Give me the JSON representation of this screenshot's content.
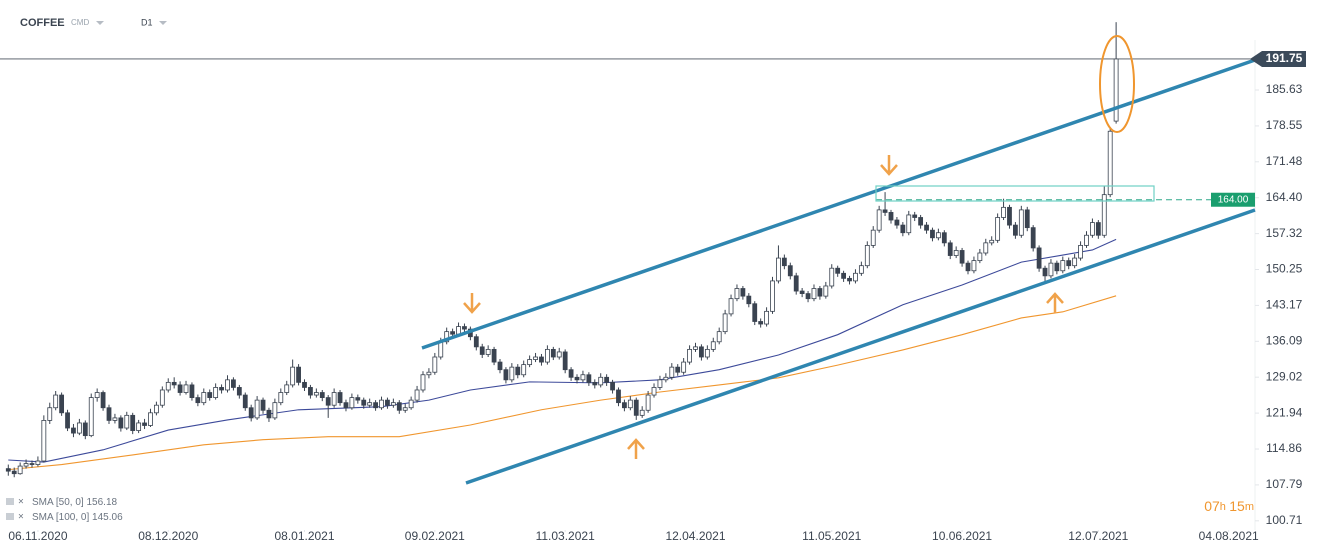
{
  "header": {
    "symbol": "COFFEE",
    "market": "CMD",
    "interval": "D1"
  },
  "chart_data": {
    "type": "candlestick",
    "xlim": [
      -1.4,
      209.6
    ],
    "ylim": [
      98.9,
      201.4
    ],
    "xticks": [
      {
        "value": 5,
        "label": "06.11.2020"
      },
      {
        "value": 27,
        "label": "08.12.2020"
      },
      {
        "value": 50,
        "label": "08.01.2021"
      },
      {
        "value": 72,
        "label": "09.02.2021"
      },
      {
        "value": 94,
        "label": "11.03.2021"
      },
      {
        "value": 116,
        "label": "12.04.2021"
      },
      {
        "value": 139,
        "label": "11.05.2021"
      },
      {
        "value": 161,
        "label": "10.06.2021"
      },
      {
        "value": 184,
        "label": "12.07.2021"
      },
      {
        "value": 206,
        "label": "04.08.2021"
      }
    ],
    "yticks": [
      100.71,
      107.79,
      114.86,
      121.94,
      129.02,
      136.09,
      143.17,
      150.25,
      157.32,
      {
        "value": 164.4,
        "label": "164.40"
      },
      171.48,
      178.55,
      185.63
    ],
    "up_color": "#ffffff",
    "down_color": "#3a4350",
    "outline_color": "#3a4350",
    "candles": [
      [
        111.0,
        111.8,
        109.6,
        110.5
      ],
      [
        110.5,
        111.2,
        109.3,
        110.0
      ],
      [
        110.0,
        112.2,
        109.8,
        111.5
      ],
      [
        111.5,
        112.8,
        111.0,
        112.0
      ],
      [
        112.0,
        112.6,
        111.2,
        111.8
      ],
      [
        111.8,
        113.4,
        111.4,
        112.5
      ],
      [
        112.5,
        121.5,
        112.2,
        120.5
      ],
      [
        120.5,
        124.0,
        119.8,
        123.0
      ],
      [
        123.0,
        126.3,
        122.5,
        125.5
      ],
      [
        125.5,
        126.0,
        121.4,
        122.0
      ],
      [
        122.0,
        122.6,
        118.4,
        119.0
      ],
      [
        119.0,
        119.8,
        117.2,
        118.0
      ],
      [
        118.0,
        120.8,
        117.6,
        120.0
      ],
      [
        120.0,
        120.5,
        116.8,
        117.5
      ],
      [
        117.5,
        125.8,
        117.2,
        125.0
      ],
      [
        125.0,
        126.8,
        124.2,
        126.0
      ],
      [
        126.0,
        126.4,
        122.4,
        123.0
      ],
      [
        123.0,
        123.6,
        119.8,
        120.5
      ],
      [
        120.5,
        121.8,
        119.9,
        121.0
      ],
      [
        121.0,
        121.5,
        118.3,
        119.0
      ],
      [
        119.0,
        122.2,
        118.6,
        121.5
      ],
      [
        121.5,
        122.0,
        117.8,
        118.5
      ],
      [
        118.5,
        120.6,
        118.0,
        120.0
      ],
      [
        120.0,
        120.8,
        118.8,
        119.5
      ],
      [
        119.5,
        122.8,
        119.2,
        122.0
      ],
      [
        122.0,
        124.2,
        121.5,
        123.5
      ],
      [
        123.5,
        127.2,
        123.0,
        126.5
      ],
      [
        126.5,
        128.8,
        126.0,
        128.0
      ],
      [
        128.0,
        129.0,
        126.8,
        127.5
      ],
      [
        127.5,
        128.2,
        125.4,
        126.0
      ],
      [
        126.0,
        128.3,
        125.6,
        127.5
      ],
      [
        127.5,
        128.0,
        124.4,
        125.0
      ],
      [
        125.0,
        125.6,
        123.3,
        124.0
      ],
      [
        124.0,
        126.8,
        123.5,
        126.0
      ],
      [
        126.0,
        126.6,
        124.4,
        125.0
      ],
      [
        125.0,
        127.8,
        124.6,
        127.0
      ],
      [
        127.0,
        127.6,
        125.8,
        126.5
      ],
      [
        126.5,
        129.4,
        126.0,
        128.5
      ],
      [
        128.5,
        129.0,
        126.4,
        127.0
      ],
      [
        127.0,
        127.5,
        124.8,
        125.5
      ],
      [
        125.5,
        126.0,
        122.4,
        123.0
      ],
      [
        123.0,
        123.6,
        120.3,
        121.0
      ],
      [
        121.0,
        125.3,
        120.6,
        124.5
      ],
      [
        124.5,
        125.0,
        121.8,
        122.5
      ],
      [
        122.5,
        123.0,
        120.2,
        121.0
      ],
      [
        121.0,
        124.8,
        120.6,
        124.0
      ],
      [
        124.0,
        126.8,
        123.5,
        126.0
      ],
      [
        126.0,
        128.3,
        125.5,
        127.5
      ],
      [
        127.5,
        132.5,
        127.0,
        131.0
      ],
      [
        131.0,
        131.6,
        127.4,
        128.0
      ],
      [
        128.0,
        128.6,
        126.3,
        127.0
      ],
      [
        127.0,
        127.5,
        124.8,
        125.5
      ],
      [
        125.5,
        126.8,
        125.0,
        126.0
      ],
      [
        126.0,
        126.5,
        124.3,
        125.0
      ],
      [
        125.0,
        125.5,
        121.0,
        123.5
      ],
      [
        123.5,
        126.8,
        123.0,
        126.0
      ],
      [
        126.0,
        126.5,
        123.4,
        124.0
      ],
      [
        124.0,
        124.6,
        122.3,
        123.0
      ],
      [
        123.0,
        125.8,
        122.6,
        125.0
      ],
      [
        125.0,
        125.6,
        123.8,
        124.5
      ],
      [
        124.5,
        125.0,
        122.8,
        123.5
      ],
      [
        123.5,
        124.8,
        123.0,
        124.0
      ],
      [
        124.0,
        124.5,
        122.4,
        123.0
      ],
      [
        123.0,
        125.2,
        122.6,
        124.5
      ],
      [
        124.5,
        125.0,
        122.8,
        123.5
      ],
      [
        123.5,
        124.8,
        123.0,
        124.0
      ],
      [
        124.0,
        124.5,
        121.8,
        122.5
      ],
      [
        122.5,
        123.8,
        122.0,
        123.0
      ],
      [
        123.0,
        125.2,
        122.6,
        124.5
      ],
      [
        124.5,
        127.3,
        124.0,
        126.5
      ],
      [
        126.5,
        130.2,
        126.0,
        129.5
      ],
      [
        129.5,
        130.8,
        128.8,
        130.0
      ],
      [
        130.0,
        133.8,
        129.5,
        133.0
      ],
      [
        133.0,
        136.8,
        132.5,
        136.0
      ],
      [
        136.0,
        138.8,
        135.5,
        138.0
      ],
      [
        138.0,
        138.6,
        136.8,
        137.5
      ],
      [
        137.5,
        139.8,
        137.0,
        139.0
      ],
      [
        139.0,
        139.6,
        137.8,
        138.5
      ],
      [
        138.5,
        139.0,
        136.3,
        137.0
      ],
      [
        137.0,
        137.5,
        134.3,
        135.0
      ],
      [
        135.0,
        135.6,
        132.8,
        133.5
      ],
      [
        133.5,
        135.3,
        133.0,
        134.5
      ],
      [
        134.5,
        135.0,
        131.4,
        132.0
      ],
      [
        132.0,
        132.6,
        129.8,
        130.5
      ],
      [
        130.5,
        131.0,
        127.8,
        128.5
      ],
      [
        128.5,
        131.8,
        128.0,
        131.0
      ],
      [
        131.0,
        131.6,
        128.8,
        129.5
      ],
      [
        129.5,
        132.3,
        129.0,
        131.5
      ],
      [
        131.5,
        133.3,
        131.0,
        132.5
      ],
      [
        132.5,
        133.8,
        132.0,
        133.0
      ],
      [
        133.0,
        133.6,
        131.3,
        132.0
      ],
      [
        132.0,
        135.3,
        131.5,
        134.5
      ],
      [
        134.5,
        135.0,
        132.4,
        133.0
      ],
      [
        133.0,
        134.8,
        132.5,
        134.0
      ],
      [
        134.0,
        134.5,
        129.8,
        130.5
      ],
      [
        130.5,
        131.0,
        128.3,
        129.0
      ],
      [
        129.0,
        129.6,
        127.8,
        128.5
      ],
      [
        128.5,
        130.3,
        128.0,
        129.5
      ],
      [
        129.5,
        130.0,
        127.3,
        128.0
      ],
      [
        128.0,
        128.6,
        126.8,
        127.5
      ],
      [
        127.5,
        129.8,
        127.0,
        129.0
      ],
      [
        129.0,
        129.6,
        127.3,
        128.0
      ],
      [
        128.0,
        128.5,
        125.8,
        126.5
      ],
      [
        126.5,
        127.0,
        123.3,
        124.0
      ],
      [
        124.0,
        124.6,
        122.3,
        123.0
      ],
      [
        123.0,
        125.3,
        122.5,
        124.5
      ],
      [
        124.5,
        125.0,
        120.6,
        121.5
      ],
      [
        121.5,
        123.3,
        121.0,
        122.5
      ],
      [
        122.5,
        126.3,
        122.0,
        125.5
      ],
      [
        125.5,
        127.8,
        125.0,
        127.0
      ],
      [
        127.0,
        129.3,
        126.5,
        128.5
      ],
      [
        128.5,
        129.8,
        128.0,
        129.0
      ],
      [
        129.0,
        131.8,
        128.5,
        131.0
      ],
      [
        131.0,
        131.6,
        129.3,
        130.0
      ],
      [
        130.0,
        132.8,
        129.5,
        132.0
      ],
      [
        132.0,
        135.3,
        131.5,
        134.5
      ],
      [
        134.5,
        135.8,
        134.0,
        135.0
      ],
      [
        135.0,
        135.5,
        132.3,
        133.0
      ],
      [
        133.0,
        135.3,
        132.5,
        134.5
      ],
      [
        134.5,
        136.8,
        134.0,
        136.0
      ],
      [
        136.0,
        138.8,
        135.5,
        138.0
      ],
      [
        138.0,
        142.3,
        137.5,
        141.5
      ],
      [
        141.5,
        145.3,
        141.0,
        144.5
      ],
      [
        144.5,
        147.3,
        144.0,
        146.5
      ],
      [
        146.5,
        147.0,
        144.3,
        145.0
      ],
      [
        145.0,
        145.6,
        142.8,
        143.5
      ],
      [
        143.5,
        144.0,
        139.3,
        140.0
      ],
      [
        140.0,
        140.6,
        138.8,
        139.5
      ],
      [
        139.5,
        142.8,
        139.0,
        142.0
      ],
      [
        142.0,
        148.8,
        141.5,
        148.0
      ],
      [
        148.0,
        155.0,
        147.5,
        152.5
      ],
      [
        152.5,
        153.2,
        150.3,
        151.0
      ],
      [
        151.0,
        151.6,
        148.3,
        149.0
      ],
      [
        149.0,
        149.6,
        145.3,
        146.0
      ],
      [
        146.0,
        146.6,
        144.8,
        145.5
      ],
      [
        145.5,
        146.0,
        143.8,
        144.5
      ],
      [
        144.5,
        147.3,
        144.0,
        146.5
      ],
      [
        146.5,
        147.0,
        144.3,
        145.0
      ],
      [
        145.0,
        147.8,
        144.5,
        147.0
      ],
      [
        147.0,
        151.3,
        146.5,
        150.5
      ],
      [
        150.5,
        151.0,
        148.8,
        149.5
      ],
      [
        149.5,
        150.0,
        147.8,
        148.5
      ],
      [
        148.5,
        149.0,
        147.3,
        148.0
      ],
      [
        148.0,
        150.3,
        147.5,
        149.5
      ],
      [
        149.5,
        151.8,
        149.0,
        151.0
      ],
      [
        151.0,
        155.8,
        150.5,
        155.0
      ],
      [
        155.0,
        158.8,
        154.5,
        158.0
      ],
      [
        158.0,
        162.8,
        157.5,
        162.0
      ],
      [
        162.0,
        165.5,
        160.8,
        161.5
      ],
      [
        161.5,
        162.0,
        159.3,
        160.0
      ],
      [
        160.0,
        160.6,
        158.3,
        159.0
      ],
      [
        159.0,
        159.6,
        156.8,
        157.5
      ],
      [
        157.5,
        161.8,
        157.0,
        161.0
      ],
      [
        161.0,
        161.6,
        159.8,
        160.5
      ],
      [
        160.5,
        161.0,
        158.3,
        159.0
      ],
      [
        159.0,
        159.6,
        157.3,
        158.0
      ],
      [
        158.0,
        158.5,
        155.8,
        156.5
      ],
      [
        156.5,
        158.3,
        156.0,
        157.5
      ],
      [
        157.5,
        158.0,
        154.8,
        155.5
      ],
      [
        155.5,
        156.0,
        152.3,
        153.0
      ],
      [
        153.0,
        154.8,
        152.5,
        154.0
      ],
      [
        154.0,
        154.5,
        150.8,
        151.5
      ],
      [
        151.5,
        152.0,
        149.3,
        150.0
      ],
      [
        150.0,
        152.8,
        149.5,
        152.0
      ],
      [
        152.0,
        154.3,
        151.5,
        153.5
      ],
      [
        153.5,
        156.3,
        153.0,
        155.5
      ],
      [
        155.5,
        156.8,
        155.0,
        156.0
      ],
      [
        156.0,
        161.3,
        155.5,
        160.5
      ],
      [
        160.5,
        164.2,
        160.0,
        162.5
      ],
      [
        162.5,
        163.0,
        158.3,
        159.0
      ],
      [
        159.0,
        159.6,
        156.3,
        157.0
      ],
      [
        157.0,
        162.8,
        156.5,
        162.0
      ],
      [
        162.0,
        162.6,
        157.8,
        158.5
      ],
      [
        158.5,
        159.0,
        153.8,
        154.5
      ],
      [
        154.5,
        155.0,
        149.8,
        150.5
      ],
      [
        150.5,
        151.0,
        147.5,
        149.0
      ],
      [
        149.0,
        152.3,
        148.5,
        151.5
      ],
      [
        151.5,
        152.0,
        149.3,
        150.0
      ],
      [
        150.0,
        152.8,
        149.5,
        152.0
      ],
      [
        152.0,
        152.6,
        150.3,
        151.0
      ],
      [
        151.0,
        153.3,
        150.5,
        152.5
      ],
      [
        152.5,
        155.8,
        152.0,
        155.0
      ],
      [
        155.0,
        157.8,
        154.5,
        157.0
      ],
      [
        157.0,
        160.3,
        156.5,
        159.5
      ],
      [
        159.5,
        160.0,
        156.3,
        157.0
      ],
      [
        157.0,
        166.8,
        156.5,
        165.0
      ],
      [
        165.0,
        178.3,
        164.5,
        177.5
      ],
      [
        179.5,
        199.0,
        179.0,
        191.75
      ]
    ],
    "series": [
      {
        "name": "SMA [50, 0]",
        "last": 156.18,
        "color": "#3d4a9a",
        "x": [
          0,
          6,
          16,
          27,
          37,
          49,
          63,
          71,
          78,
          88,
          100,
          110,
          120,
          130,
          140,
          151,
          161,
          171,
          178,
          183,
          187
        ],
        "values": [
          112.7,
          112.3,
          114.7,
          118.6,
          120.6,
          122.6,
          123.2,
          124.5,
          126.5,
          128.1,
          127.9,
          128.5,
          130.5,
          133.4,
          137.4,
          143.3,
          147.2,
          151.7,
          153.1,
          154.1,
          156.18
        ]
      },
      {
        "name": "SMA [100, 0]",
        "last": 145.06,
        "color": "#f0962e",
        "x": [
          0,
          9,
          21,
          33,
          43,
          54,
          66,
          78,
          90,
          100,
          110,
          120,
          130,
          140,
          151,
          161,
          171,
          178,
          187
        ],
        "values": [
          110.8,
          111.8,
          113.7,
          115.7,
          116.7,
          117.3,
          117.3,
          119.6,
          122.6,
          124.5,
          126.1,
          127.5,
          128.9,
          131.4,
          134.4,
          137.4,
          140.7,
          141.9,
          145.06
        ]
      }
    ],
    "price_line": 191.75,
    "level_line": {
      "value": 164,
      "label": "164.00"
    }
  },
  "timer": {
    "hours": "07",
    "h": "h",
    "minutes": "15",
    "m": "m"
  }
}
